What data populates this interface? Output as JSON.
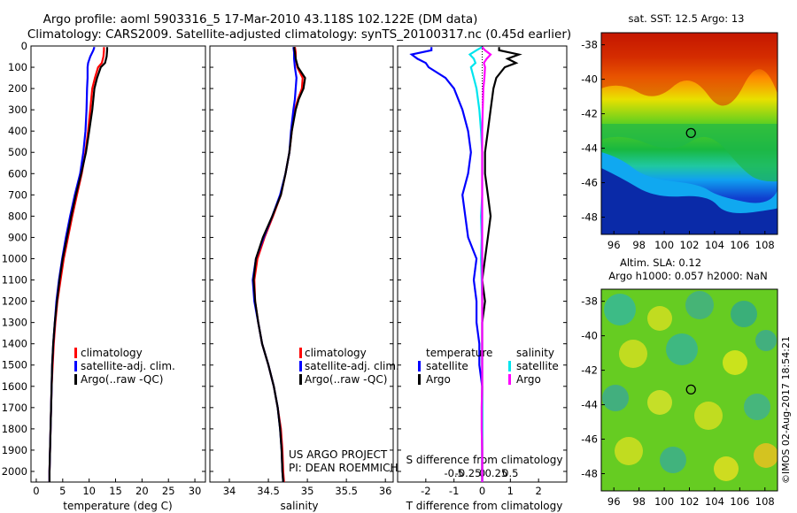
{
  "title_line1": "Argo profile: aoml 5903316_5 17-Mar-2010 43.118S 102.122E (DM data)",
  "title_line2": "Climatology: CARS2009. Satellite-adjusted climatology: synTS_20100317.nc (0.45d earlier)",
  "project_line1": "US ARGO PROJECT",
  "project_line2": "PI: DEAN ROEMMICH",
  "timestamp": "©IMOS 02-Aug-2017 18:54:21",
  "colors": {
    "climatology": "#ff0000",
    "satellite": "#0000ff",
    "argo": "#000000",
    "satellite_s": "#00e5ee",
    "argo_s": "#ff00ff"
  },
  "chart_data": [
    {
      "type": "line",
      "panel": "temperature",
      "xlabel": "temperature (deg C)",
      "ylim": [
        2050,
        0
      ],
      "xlim": [
        -1,
        32
      ],
      "xticks": [
        "0",
        "5",
        "10",
        "15",
        "20",
        "25",
        "30"
      ],
      "yticks": [
        "0",
        "100",
        "200",
        "300",
        "400",
        "500",
        "600",
        "700",
        "800",
        "900",
        "1000",
        "1100",
        "1200",
        "1300",
        "1400",
        "1500",
        "1600",
        "1700",
        "1800",
        "1900",
        "2000"
      ],
      "legend": [
        "climatology",
        "satellite-adj. clim.",
        "Argo(..raw -QC)"
      ],
      "depth": [
        5,
        20,
        50,
        80,
        100,
        150,
        200,
        300,
        400,
        500,
        600,
        700,
        800,
        900,
        1000,
        1100,
        1200,
        1300,
        1400,
        1500,
        1600,
        1700,
        1800,
        1900,
        2000,
        2050
      ],
      "series": [
        {
          "name": "climatology",
          "values": [
            12.8,
            12.8,
            12.7,
            12.4,
            11.7,
            11.1,
            10.6,
            10.2,
            9.8,
            9.3,
            8.6,
            7.7,
            6.8,
            6.0,
            5.2,
            4.6,
            4.0,
            3.6,
            3.3,
            3.1,
            2.9,
            2.8,
            2.7,
            2.6,
            2.5,
            2.5
          ]
        },
        {
          "name": "satellite-adj. clim.",
          "values": [
            11.0,
            10.8,
            10.2,
            9.8,
            9.7,
            9.7,
            9.6,
            9.5,
            9.3,
            8.9,
            8.3,
            7.3,
            6.4,
            5.6,
            4.9,
            4.3,
            3.8,
            3.5,
            3.2,
            3.0,
            2.9,
            2.8,
            2.7,
            2.6,
            2.5,
            2.5
          ]
        },
        {
          "name": "Argo(..raw -QC)",
          "values": [
            13.4,
            13.4,
            13.3,
            13.0,
            12.2,
            11.5,
            11.0,
            10.6,
            10.0,
            9.4,
            8.5,
            7.5,
            6.6,
            5.8,
            5.0,
            4.4,
            3.9,
            3.5,
            3.2,
            3.0,
            2.9,
            2.8,
            2.7,
            2.6,
            2.5,
            2.5
          ]
        }
      ]
    },
    {
      "type": "line",
      "panel": "salinity",
      "xlabel": "salinity",
      "ylim": [
        2050,
        0
      ],
      "xlim": [
        33.75,
        36.1
      ],
      "xticks": [
        "34",
        "34.5",
        "35",
        "35.5",
        "36"
      ],
      "legend": [
        "climatology",
        "satellite-adj. clim.",
        "Argo(..raw -QC)"
      ],
      "depth": [
        5,
        30,
        60,
        100,
        150,
        200,
        250,
        300,
        400,
        500,
        600,
        700,
        800,
        900,
        1000,
        1100,
        1200,
        1300,
        1400,
        1500,
        1600,
        1700,
        1800,
        1900,
        2000,
        2050
      ],
      "series": [
        {
          "name": "climatology",
          "values": [
            34.84,
            34.85,
            34.85,
            34.87,
            34.94,
            34.93,
            34.88,
            34.84,
            34.8,
            34.77,
            34.72,
            34.66,
            34.56,
            34.45,
            34.36,
            34.32,
            34.33,
            34.37,
            34.42,
            34.5,
            34.57,
            34.62,
            34.66,
            34.68,
            34.69,
            34.7
          ]
        },
        {
          "name": "satellite-adj. clim.",
          "values": [
            34.82,
            34.83,
            34.83,
            34.84,
            34.86,
            34.85,
            34.84,
            34.82,
            34.79,
            34.77,
            34.72,
            34.65,
            34.55,
            34.44,
            34.34,
            34.3,
            34.32,
            34.37,
            34.42,
            34.5,
            34.57,
            34.62,
            34.65,
            34.67,
            34.68,
            34.69
          ]
        },
        {
          "name": "Argo(..raw -QC)",
          "values": [
            34.83,
            34.84,
            34.85,
            34.88,
            34.97,
            34.95,
            34.89,
            34.85,
            34.8,
            34.77,
            34.72,
            34.66,
            34.55,
            34.43,
            34.34,
            34.31,
            34.33,
            34.37,
            34.42,
            34.5,
            34.57,
            34.62,
            34.65,
            34.67,
            34.68,
            34.69
          ]
        }
      ]
    },
    {
      "type": "line",
      "panel": "difference",
      "xlabel": "T difference from climatology",
      "xlabel_top": "S difference from climatology",
      "ylim": [
        2050,
        0
      ],
      "xlim": [
        -3,
        3
      ],
      "xticks": [
        "-2",
        "-1",
        "0",
        "1",
        "2"
      ],
      "xticks_top": [
        "-0.5",
        "-0.25",
        "0",
        "0.25",
        "0.5"
      ],
      "legend_temperature_header": "temperature",
      "legend_salinity_header": "salinity",
      "legend_temperature": [
        "satellite",
        "Argo"
      ],
      "legend_salinity": [
        "satellite",
        "Argo"
      ],
      "depth": [
        5,
        20,
        40,
        60,
        80,
        100,
        150,
        200,
        300,
        400,
        500,
        600,
        700,
        800,
        900,
        1000,
        1100,
        1200,
        1300,
        1400,
        1500,
        1600,
        1700,
        1800,
        1900,
        2000,
        2050
      ],
      "series": [
        {
          "name": "T satellite",
          "values": [
            -1.8,
            -1.8,
            -2.5,
            -2.3,
            -2.0,
            -1.9,
            -1.3,
            -1.0,
            -0.7,
            -0.5,
            -0.4,
            -0.5,
            -0.7,
            -0.6,
            -0.5,
            -0.2,
            -0.3,
            -0.2,
            -0.2,
            -0.1,
            -0.1,
            0.0,
            0.0,
            0.0,
            0.0,
            0.0,
            0.0
          ]
        },
        {
          "name": "T Argo",
          "values": [
            0.6,
            0.6,
            1.3,
            0.9,
            1.2,
            0.8,
            0.5,
            0.4,
            0.3,
            0.2,
            0.1,
            0.1,
            0.2,
            0.3,
            0.2,
            0.1,
            0.0,
            0.1,
            0.0,
            0.0,
            0.0,
            0.0,
            0.0,
            0.0,
            0.0,
            0.0,
            0.0
          ]
        },
        {
          "name": "S satellite",
          "values": [
            0.0,
            -0.1,
            -0.22,
            -0.15,
            -0.12,
            -0.2,
            -0.15,
            -0.1,
            -0.05,
            -0.02,
            0.0,
            0.0,
            0.0,
            -0.02,
            -0.01,
            -0.02,
            -0.01,
            0.0,
            0.0,
            0.0,
            0.0,
            0.0,
            0.0,
            0.0,
            0.0,
            0.0,
            0.0
          ]
        },
        {
          "name": "S Argo",
          "values": [
            0.0,
            0.05,
            0.15,
            0.08,
            0.03,
            0.05,
            0.04,
            0.02,
            0.01,
            0.0,
            0.0,
            0.0,
            0.0,
            0.0,
            0.0,
            0.0,
            0.0,
            0.0,
            0.0,
            0.0,
            0.0,
            0.0,
            -0.01,
            -0.01,
            0.0,
            0.0,
            0.0
          ]
        }
      ]
    },
    {
      "type": "heatmap",
      "panel": "sst_map",
      "title": "sat. SST: 12.5 Argo: 13",
      "xticks": [
        "96",
        "98",
        "100",
        "102",
        "104",
        "106",
        "108"
      ],
      "yticks": [
        "-38",
        "-40",
        "-42",
        "-44",
        "-46",
        "-48"
      ],
      "xlim": [
        95,
        109
      ],
      "ylim": [
        -49,
        -37.3
      ],
      "marker": {
        "lon": 102.122,
        "lat": -43.118
      }
    },
    {
      "type": "heatmap",
      "panel": "sla_map",
      "title_line1": "Altim. SLA: 0.12",
      "title_line2": "Argo h1000: 0.057 h2000: NaN",
      "xticks": [
        "96",
        "98",
        "100",
        "102",
        "104",
        "106",
        "108"
      ],
      "yticks": [
        "-38",
        "-40",
        "-42",
        "-44",
        "-46",
        "-48"
      ],
      "xlim": [
        95,
        109
      ],
      "ylim": [
        -49,
        -37.3
      ],
      "marker": {
        "lon": 102.122,
        "lat": -43.118
      }
    }
  ]
}
